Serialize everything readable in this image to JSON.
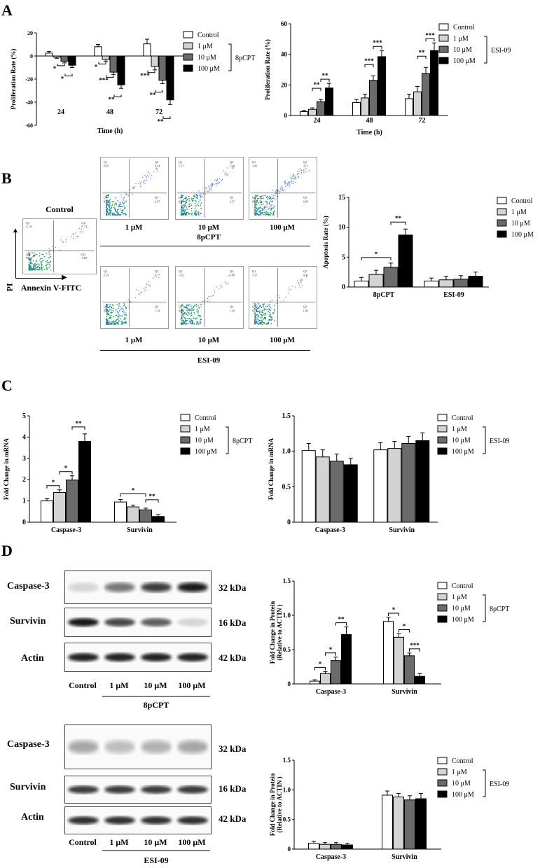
{
  "panels": {
    "A": "A",
    "B": "B",
    "C": "C",
    "D": "D"
  },
  "legend": {
    "labels": [
      "Control",
      "1 μM",
      "10 μM",
      "100 μM"
    ],
    "group_8pCPT": "8pCPT",
    "group_ESI": "ESI-09",
    "colors": [
      "#ffffff",
      "#d3d3d3",
      "#6b6b6b",
      "#000000"
    ]
  },
  "flow": {
    "control_title": "Control",
    "axis_y": "PI",
    "axis_x": "Annexin V-FITC",
    "conc_labels": [
      "1 μM",
      "10 μM",
      "100 μM"
    ],
    "group_8pCPT": "8pCPT",
    "group_ESI": "ESI-09",
    "control_quads": [
      "2.19",
      "6.71",
      "90.1",
      "1.00"
    ],
    "quads_8pCPT": [
      [
        "0.85",
        "6.34",
        "87.4",
        "2.47"
      ],
      [
        "1.27",
        "12.0",
        "83.4",
        "3.37"
      ],
      [
        "1.06",
        "31.5",
        "65.5",
        "0.65"
      ]
    ],
    "quads_ESI": [
      [
        "2.19",
        "6.77",
        "89.9",
        "1.19"
      ],
      [
        "1.82",
        "4.88",
        "92.0",
        "1.29"
      ],
      [
        "1.37",
        "4.41",
        "92.4",
        "1.83"
      ]
    ],
    "q_names": [
      "Q1",
      "Q2",
      "Q4",
      "Q3"
    ]
  },
  "western": {
    "proteins": [
      "Caspase-3",
      "Survivin",
      "Actin"
    ],
    "kda": [
      "32 kDa",
      "16 kDa",
      "42 kDa"
    ],
    "lanes": [
      "Control",
      "1 μM",
      "10 μM",
      "100 μM"
    ],
    "group_8pCPT": "8pCPT",
    "group_ESI": "ESI-09"
  },
  "chart_data": [
    {
      "id": "A_8pCPT",
      "type": "bar",
      "ylabel": "Proliferation Rate (%)",
      "xlabel": "Time (h)",
      "categories": [
        "24",
        "48",
        "72"
      ],
      "ylim": [
        -60,
        20
      ],
      "yticks": [
        20,
        0,
        -20,
        -40,
        -60
      ],
      "series": [
        {
          "name": "Control",
          "values": [
            2.5,
            8,
            10.5
          ],
          "err": [
            1.5,
            2,
            4
          ]
        },
        {
          "name": "1 μM",
          "values": [
            -1,
            -3,
            -9
          ],
          "err": [
            1,
            1.5,
            3
          ]
        },
        {
          "name": "10 μM",
          "values": [
            -4.5,
            -14,
            -21
          ],
          "err": [
            1.5,
            2,
            3
          ]
        },
        {
          "name": "100 μM",
          "values": [
            -8,
            -25,
            -38
          ],
          "err": [
            2,
            3,
            4
          ]
        }
      ],
      "annotations": [
        "*",
        "*",
        "*",
        "***",
        "**",
        "***",
        "**",
        "**"
      ]
    },
    {
      "id": "A_ESI",
      "type": "bar",
      "ylabel": "Proliferation Rate (%)",
      "xlabel": "Time (h)",
      "categories": [
        "24",
        "48",
        "72"
      ],
      "ylim": [
        0,
        60
      ],
      "yticks": [
        0,
        20,
        40,
        60
      ],
      "series": [
        {
          "name": "Control",
          "values": [
            2.5,
            8.5,
            11
          ],
          "err": [
            0.8,
            2,
            3
          ]
        },
        {
          "name": "1 μM",
          "values": [
            4,
            11.5,
            15.5
          ],
          "err": [
            1,
            2.5,
            3.5
          ]
        },
        {
          "name": "10 μM",
          "values": [
            9,
            23,
            27.5
          ],
          "err": [
            1.5,
            3,
            4
          ]
        },
        {
          "name": "100 μM",
          "values": [
            18,
            38.5,
            42.5
          ],
          "err": [
            3,
            4,
            5
          ]
        }
      ],
      "annotations": [
        "**",
        "**",
        "***",
        "***",
        "**",
        "***"
      ]
    },
    {
      "id": "B_apoptosis",
      "type": "bar",
      "ylabel": "Apoptosis Rate (%)",
      "categories": [
        "8pCPT",
        "ESI-09"
      ],
      "ylim": [
        0,
        15
      ],
      "yticks": [
        0,
        5,
        10,
        15
      ],
      "series": [
        {
          "name": "Control",
          "values": [
            1,
            1
          ],
          "err": [
            0.6,
            0.5
          ]
        },
        {
          "name": "1 μM",
          "values": [
            2.1,
            1.2
          ],
          "err": [
            0.7,
            0.6
          ]
        },
        {
          "name": "10 μM",
          "values": [
            3.3,
            1.3
          ],
          "err": [
            0.7,
            0.6
          ]
        },
        {
          "name": "100 μM",
          "values": [
            8.7,
            1.8
          ],
          "err": [
            1,
            0.7
          ]
        }
      ],
      "annotations": [
        "*",
        "**"
      ]
    },
    {
      "id": "C_8pCPT",
      "type": "bar",
      "ylabel": "Fold Change in mRNA",
      "categories": [
        "Caspase-3",
        "Survivin"
      ],
      "ylim": [
        0,
        5
      ],
      "yticks": [
        0,
        1,
        2,
        3,
        4,
        5
      ],
      "series": [
        {
          "name": "Control",
          "values": [
            1,
            0.95
          ],
          "err": [
            0.1,
            0.12
          ]
        },
        {
          "name": "1 μM",
          "values": [
            1.4,
            0.72
          ],
          "err": [
            0.12,
            0.08
          ]
        },
        {
          "name": "10 μM",
          "values": [
            1.98,
            0.58
          ],
          "err": [
            0.2,
            0.08
          ]
        },
        {
          "name": "100 μM",
          "values": [
            3.8,
            0.27
          ],
          "err": [
            0.35,
            0.08
          ]
        }
      ],
      "annotations": [
        "*",
        "*",
        "**",
        "*",
        "**"
      ]
    },
    {
      "id": "C_ESI",
      "type": "bar",
      "ylabel": "Fold Change in mRNA",
      "categories": [
        "Caspase-3",
        "Survivin"
      ],
      "ylim": [
        0,
        1.5
      ],
      "yticks": [
        0,
        0.5,
        1.0,
        1.5
      ],
      "series": [
        {
          "name": "Control",
          "values": [
            1.01,
            1.02
          ],
          "err": [
            0.1,
            0.1
          ]
        },
        {
          "name": "1 μM",
          "values": [
            0.92,
            1.04
          ],
          "err": [
            0.1,
            0.1
          ]
        },
        {
          "name": "10 μM",
          "values": [
            0.86,
            1.11
          ],
          "err": [
            0.1,
            0.1
          ]
        },
        {
          "name": "100 μM",
          "values": [
            0.81,
            1.15
          ],
          "err": [
            0.09,
            0.11
          ]
        }
      ],
      "annotations": []
    },
    {
      "id": "D_8pCPT",
      "type": "bar",
      "ylabel": "Fold Change in Protein (Relative to ACTIN )",
      "categories": [
        "Caspase-3",
        "Survivin"
      ],
      "ylim": [
        0,
        1.5
      ],
      "yticks": [
        0,
        0.5,
        1.0,
        1.5
      ],
      "series": [
        {
          "name": "Control",
          "values": [
            0.04,
            0.91
          ],
          "err": [
            0.02,
            0.06
          ]
        },
        {
          "name": "1 μM",
          "values": [
            0.15,
            0.68
          ],
          "err": [
            0.03,
            0.05
          ]
        },
        {
          "name": "10 μM",
          "values": [
            0.34,
            0.41
          ],
          "err": [
            0.05,
            0.04
          ]
        },
        {
          "name": "100 μM",
          "values": [
            0.72,
            0.11
          ],
          "err": [
            0.11,
            0.04
          ]
        }
      ],
      "annotations": [
        "*",
        "*",
        "**",
        "*",
        "*",
        "***"
      ]
    },
    {
      "id": "D_ESI",
      "type": "bar",
      "ylabel": "Fold Change in Protein (Relative to ACTIN )",
      "categories": [
        "Caspase-3",
        "Survivin"
      ],
      "ylim": [
        0,
        1.5
      ],
      "yticks": [
        0,
        0.5,
        1.0,
        1.5
      ],
      "series": [
        {
          "name": "Control",
          "values": [
            0.1,
            0.91
          ],
          "err": [
            0.03,
            0.07
          ]
        },
        {
          "name": "1 μM",
          "values": [
            0.08,
            0.88
          ],
          "err": [
            0.03,
            0.06
          ]
        },
        {
          "name": "10 μM",
          "values": [
            0.08,
            0.83
          ],
          "err": [
            0.03,
            0.07
          ]
        },
        {
          "name": "100 μM",
          "values": [
            0.07,
            0.85
          ],
          "err": [
            0.03,
            0.09
          ]
        }
      ],
      "annotations": []
    }
  ]
}
